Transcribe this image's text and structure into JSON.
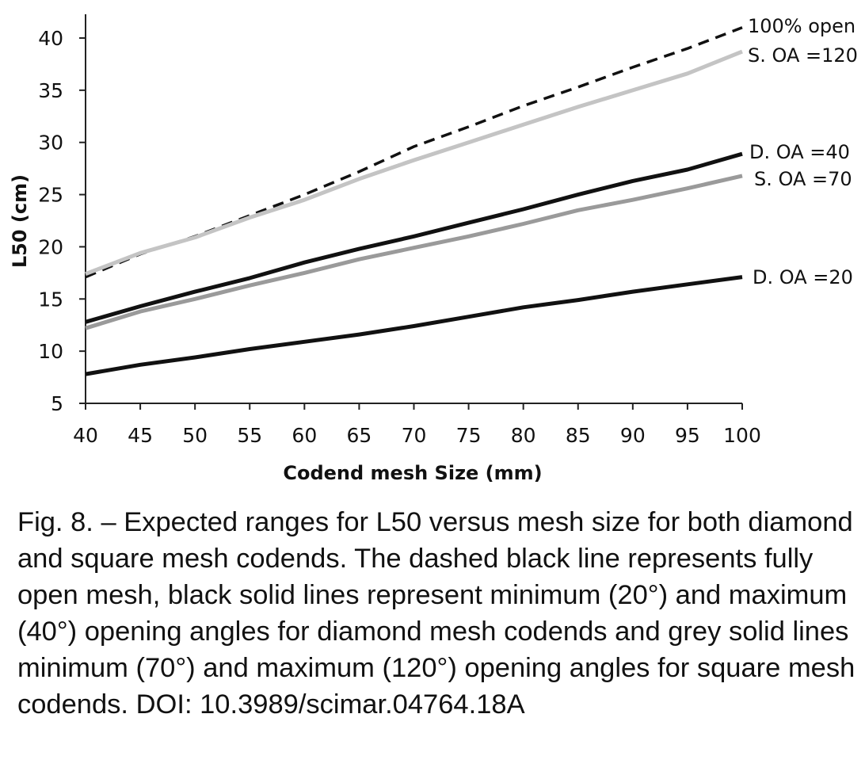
{
  "chart_data": {
    "type": "line",
    "xlabel": "Codend mesh Size (mm)",
    "ylabel": "L50 (cm)",
    "xlim": [
      40,
      100
    ],
    "ylim": [
      5,
      42
    ],
    "xticks": [
      40,
      45,
      50,
      55,
      60,
      65,
      70,
      75,
      80,
      85,
      90,
      95,
      100
    ],
    "yticks": [
      5,
      10,
      15,
      20,
      25,
      30,
      35,
      40
    ],
    "grid": false,
    "legend": "labels at line ends (right)",
    "series": [
      {
        "name": "100% open",
        "color": "#111111",
        "dashed": true,
        "x": [
          40,
          45,
          50,
          55,
          60,
          65,
          70,
          75,
          80,
          85,
          90,
          95,
          100
        ],
        "y": [
          17.1,
          19.3,
          21.0,
          23.0,
          25.0,
          27.2,
          29.6,
          31.5,
          33.5,
          35.3,
          37.2,
          39.0,
          41.0
        ]
      },
      {
        "name": "S. OA =120",
        "color": "#c4c4c4",
        "dashed": false,
        "x": [
          40,
          45,
          50,
          55,
          60,
          65,
          70,
          75,
          80,
          85,
          90,
          95,
          100
        ],
        "y": [
          17.4,
          19.4,
          20.9,
          22.8,
          24.5,
          26.5,
          28.3,
          30.0,
          31.7,
          33.4,
          35.0,
          36.6,
          38.7
        ]
      },
      {
        "name": "D. OA =40",
        "color": "#111111",
        "dashed": false,
        "x": [
          40,
          45,
          50,
          55,
          60,
          65,
          70,
          75,
          80,
          85,
          90,
          95,
          100
        ],
        "y": [
          12.8,
          14.3,
          15.7,
          17.0,
          18.5,
          19.8,
          21.0,
          22.3,
          23.6,
          25.0,
          26.3,
          27.4,
          28.9
        ]
      },
      {
        "name": "S. OA =70",
        "color": "#9a9a9a",
        "dashed": false,
        "x": [
          40,
          45,
          50,
          55,
          60,
          65,
          70,
          75,
          80,
          85,
          90,
          95,
          100
        ],
        "y": [
          12.2,
          13.8,
          15.0,
          16.3,
          17.5,
          18.8,
          19.9,
          21.0,
          22.2,
          23.5,
          24.5,
          25.6,
          26.8
        ]
      },
      {
        "name": "D. OA =20",
        "color": "#111111",
        "dashed": false,
        "x": [
          40,
          45,
          50,
          55,
          60,
          65,
          70,
          75,
          80,
          85,
          90,
          95,
          100
        ],
        "y": [
          7.8,
          8.7,
          9.4,
          10.2,
          10.9,
          11.6,
          12.4,
          13.3,
          14.2,
          14.9,
          15.7,
          16.4,
          17.1
        ]
      }
    ]
  },
  "caption": "Fig. 8. – Expected ranges for L50 versus mesh size for both diamond and square mesh codends. The dashed black line represents fully open mesh, black solid lines represent minimum (20°) and maximum (40°) opening angles for diamond mesh codends and grey solid lines minimum (70°) and maximum (120°) opening angles for square mesh codends. DOI: 10.3989/scimar.04764.18A"
}
